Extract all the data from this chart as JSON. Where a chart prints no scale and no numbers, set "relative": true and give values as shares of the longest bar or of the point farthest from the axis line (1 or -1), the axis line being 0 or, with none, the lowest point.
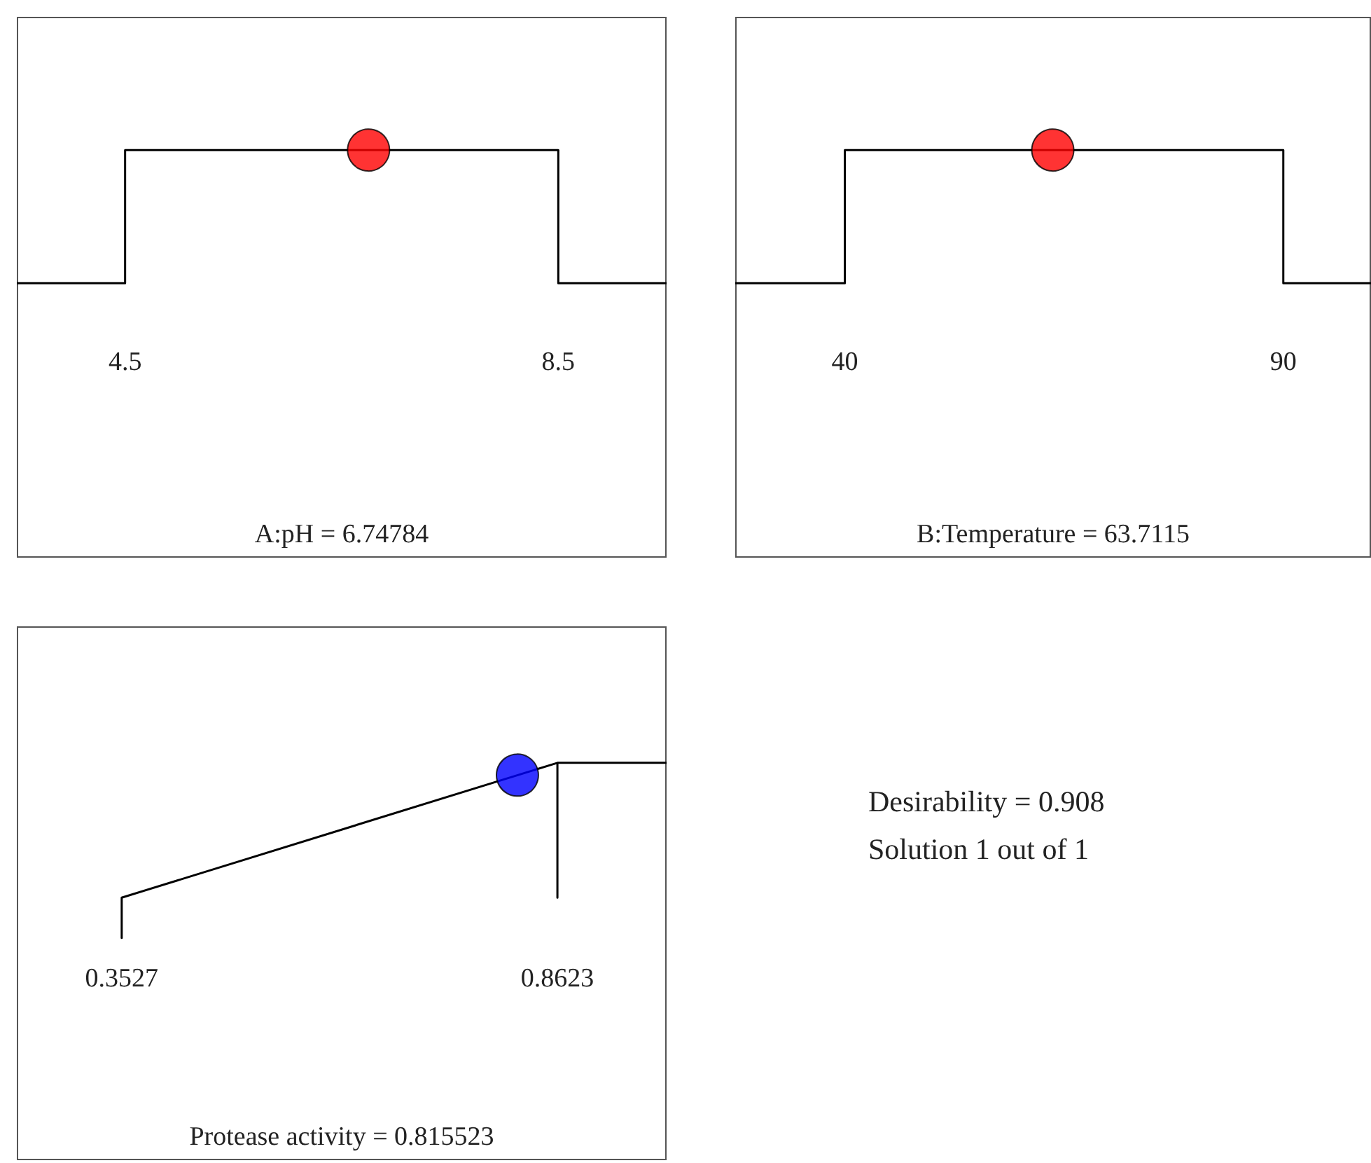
{
  "chart_data": [
    {
      "type": "line",
      "relative": true,
      "xlabel": "A:pH = 6.74784",
      "xlim": [
        3.5,
        9.5
      ],
      "xticks": [
        4.5,
        8.5
      ],
      "series": [
        {
          "type": "line",
          "x": [
            3.5,
            4.5,
            4.5,
            8.5,
            8.5,
            9.5
          ],
          "values": [
            0,
            0,
            1,
            1,
            0,
            0
          ],
          "color": "#000000",
          "marker": "none"
        },
        {
          "type": "scatter",
          "x": [
            6.74784
          ],
          "values": [
            1
          ],
          "color": "#ff0000",
          "marker": "circle"
        }
      ]
    },
    {
      "type": "line",
      "relative": true,
      "xlabel": "B:Temperature = 63.7115",
      "xlim": [
        27.5,
        100
      ],
      "xticks": [
        40,
        90
      ],
      "series": [
        {
          "type": "line",
          "x": [
            27.5,
            40,
            40,
            90,
            90,
            100
          ],
          "values": [
            0,
            0,
            1,
            1,
            0,
            0
          ],
          "color": "#000000",
          "marker": "none"
        },
        {
          "type": "scatter",
          "x": [
            63.7115
          ],
          "values": [
            1
          ],
          "color": "#ff0000",
          "marker": "circle"
        }
      ]
    },
    {
      "type": "line",
      "relative": true,
      "xlabel": "Protease activity = 0.815523",
      "xlim": [
        0.23,
        0.99
      ],
      "xticks": [
        0.3527,
        0.8623
      ],
      "series": [
        {
          "type": "line",
          "x": [
            0.3527,
            0.3527,
            0.8623,
            0.8623,
            0.8623,
            0.99
          ],
          "values": [
            0,
            0.23,
            1,
            0.23,
            1,
            1
          ],
          "color": "#000000",
          "marker": "none"
        },
        {
          "type": "scatter",
          "x": [
            0.815523
          ],
          "values": [
            0.93
          ],
          "color": "#0000ff",
          "marker": "circle"
        }
      ]
    },
    {
      "type": "other",
      "annotations": [
        "Desirability = 0.908",
        "Solution 1 out of 1"
      ]
    }
  ]
}
